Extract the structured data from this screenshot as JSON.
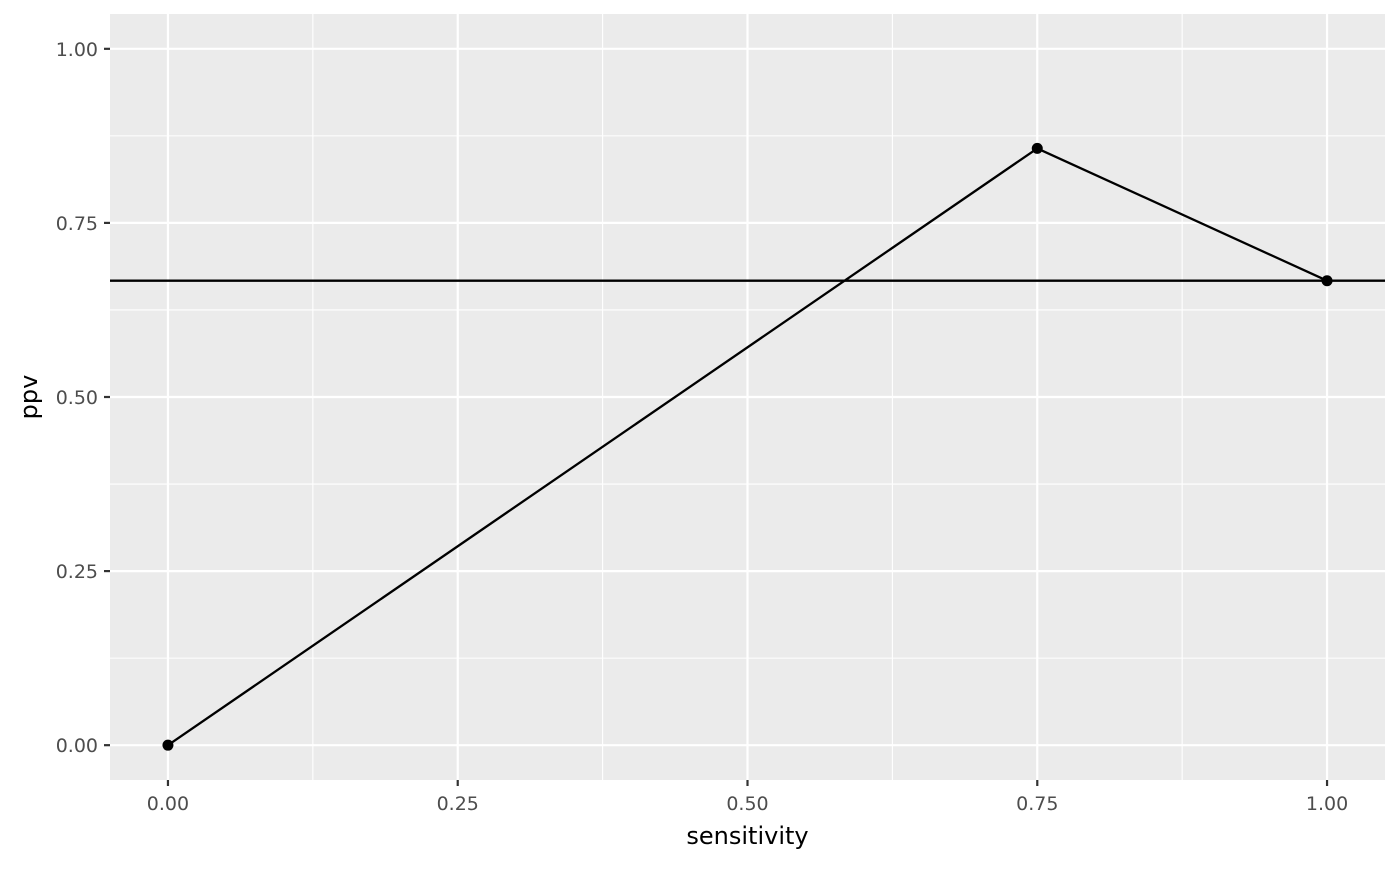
{
  "chart_data": {
    "type": "line",
    "title": "",
    "xlabel": "sensitivity",
    "ylabel": "ppv",
    "xlim": [
      -0.05,
      1.05
    ],
    "ylim": [
      -0.05,
      1.05
    ],
    "x_ticks": [
      0,
      0.25,
      0.5,
      0.75,
      1
    ],
    "x_tick_labels": [
      "0.00",
      "0.25",
      "0.50",
      "0.75",
      "1.00"
    ],
    "y_ticks": [
      0,
      0.25,
      0.5,
      0.75,
      1
    ],
    "y_tick_labels": [
      "0.00",
      "0.25",
      "0.50",
      "0.75",
      "1.00"
    ],
    "grid": true,
    "panel_background": "#ebebeb",
    "grid_color": "#ffffff",
    "line_color": "#000000",
    "series": [
      {
        "x": [
          0,
          0.75,
          1
        ],
        "y": [
          0,
          0.857,
          0.667
        ],
        "markers": true
      }
    ],
    "reference_line": {
      "orientation": "horizontal",
      "y": 0.667
    },
    "legend": "none"
  }
}
